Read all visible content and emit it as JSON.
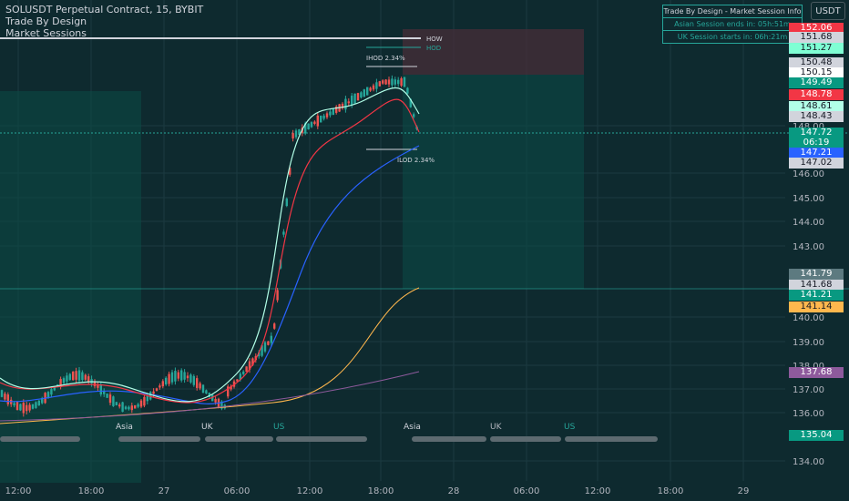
{
  "legend": {
    "symbol": "SOLUSDT Perpetual Contract, 15, BYBIT",
    "indicator1": "Trade By Design",
    "indicator2": "Market Sessions"
  },
  "info_panel": {
    "title": "Trade By Design - Market Session Info",
    "asian": "Asian Session ends in: 05h:51m",
    "uk": "UK Session starts in: 06h:21m"
  },
  "currency": "USDT",
  "chart_labels": {
    "how": "HOW",
    "hod": "HOD",
    "ihod": "IHOD 2.34%",
    "ilod": "ILOD 2.34%"
  },
  "session_labels": [
    "Asia",
    "UK",
    "US",
    "Asia",
    "UK",
    "US"
  ],
  "price_ticks": [
    "148.00",
    "146.00",
    "145.00",
    "144.00",
    "143.00",
    "140.00",
    "139.00",
    "138.00",
    "137.00",
    "136.00",
    "134.00"
  ],
  "price_tags": [
    {
      "text": "152.06",
      "bg": "#f23645",
      "fg": "#ffffff"
    },
    {
      "text": "151.68",
      "bg": "#d1d4dc",
      "fg": "#131722"
    },
    {
      "text": "151.27",
      "bg": "#7fffd4",
      "fg": "#131722"
    },
    {
      "text": "150.48",
      "bg": "#d1d4dc",
      "fg": "#131722"
    },
    {
      "text": "150.15",
      "bg": "#ffffff",
      "fg": "#131722"
    },
    {
      "text": "149.49",
      "bg": "#089981",
      "fg": "#ffffff"
    },
    {
      "text": "148.78",
      "bg": "#f23645",
      "fg": "#ffffff"
    },
    {
      "text": "148.61",
      "bg": "#b2ffe8",
      "fg": "#131722"
    },
    {
      "text": "148.43",
      "bg": "#d1d4dc",
      "fg": "#131722"
    },
    {
      "text": "147.72",
      "bg": "#089981",
      "fg": "#ffffff"
    },
    {
      "text": "06:19",
      "bg": "#089981",
      "fg": "#ffffff"
    },
    {
      "text": "147.21",
      "bg": "#2962ff",
      "fg": "#ffffff"
    },
    {
      "text": "147.02",
      "bg": "#d1d4dc",
      "fg": "#131722"
    },
    {
      "text": "141.79",
      "bg": "#5d7a80",
      "fg": "#ffffff"
    },
    {
      "text": "141.68",
      "bg": "#d1d4dc",
      "fg": "#131722"
    },
    {
      "text": "141.21",
      "bg": "#089981",
      "fg": "#ffffff"
    },
    {
      "text": "141.14",
      "bg": "#ffb74d",
      "fg": "#131722"
    },
    {
      "text": "137.68",
      "bg": "#8e5a9c",
      "fg": "#ffffff"
    },
    {
      "text": "135.04",
      "bg": "#089981",
      "fg": "#ffffff"
    }
  ],
  "time_labels": [
    "12:00",
    "18:00",
    "27",
    "06:00",
    "12:00",
    "18:00",
    "28",
    "06:00",
    "12:00",
    "18:00",
    "29"
  ],
  "colors": {
    "up": "#26a69a",
    "down": "#ef5350",
    "ema_fast": "#b2ffe8",
    "ema_mid": "#f23645",
    "ema_slow": "#2962ff",
    "sma_orange": "#ffb74d",
    "sma_purple": "#8e5a9c"
  }
}
